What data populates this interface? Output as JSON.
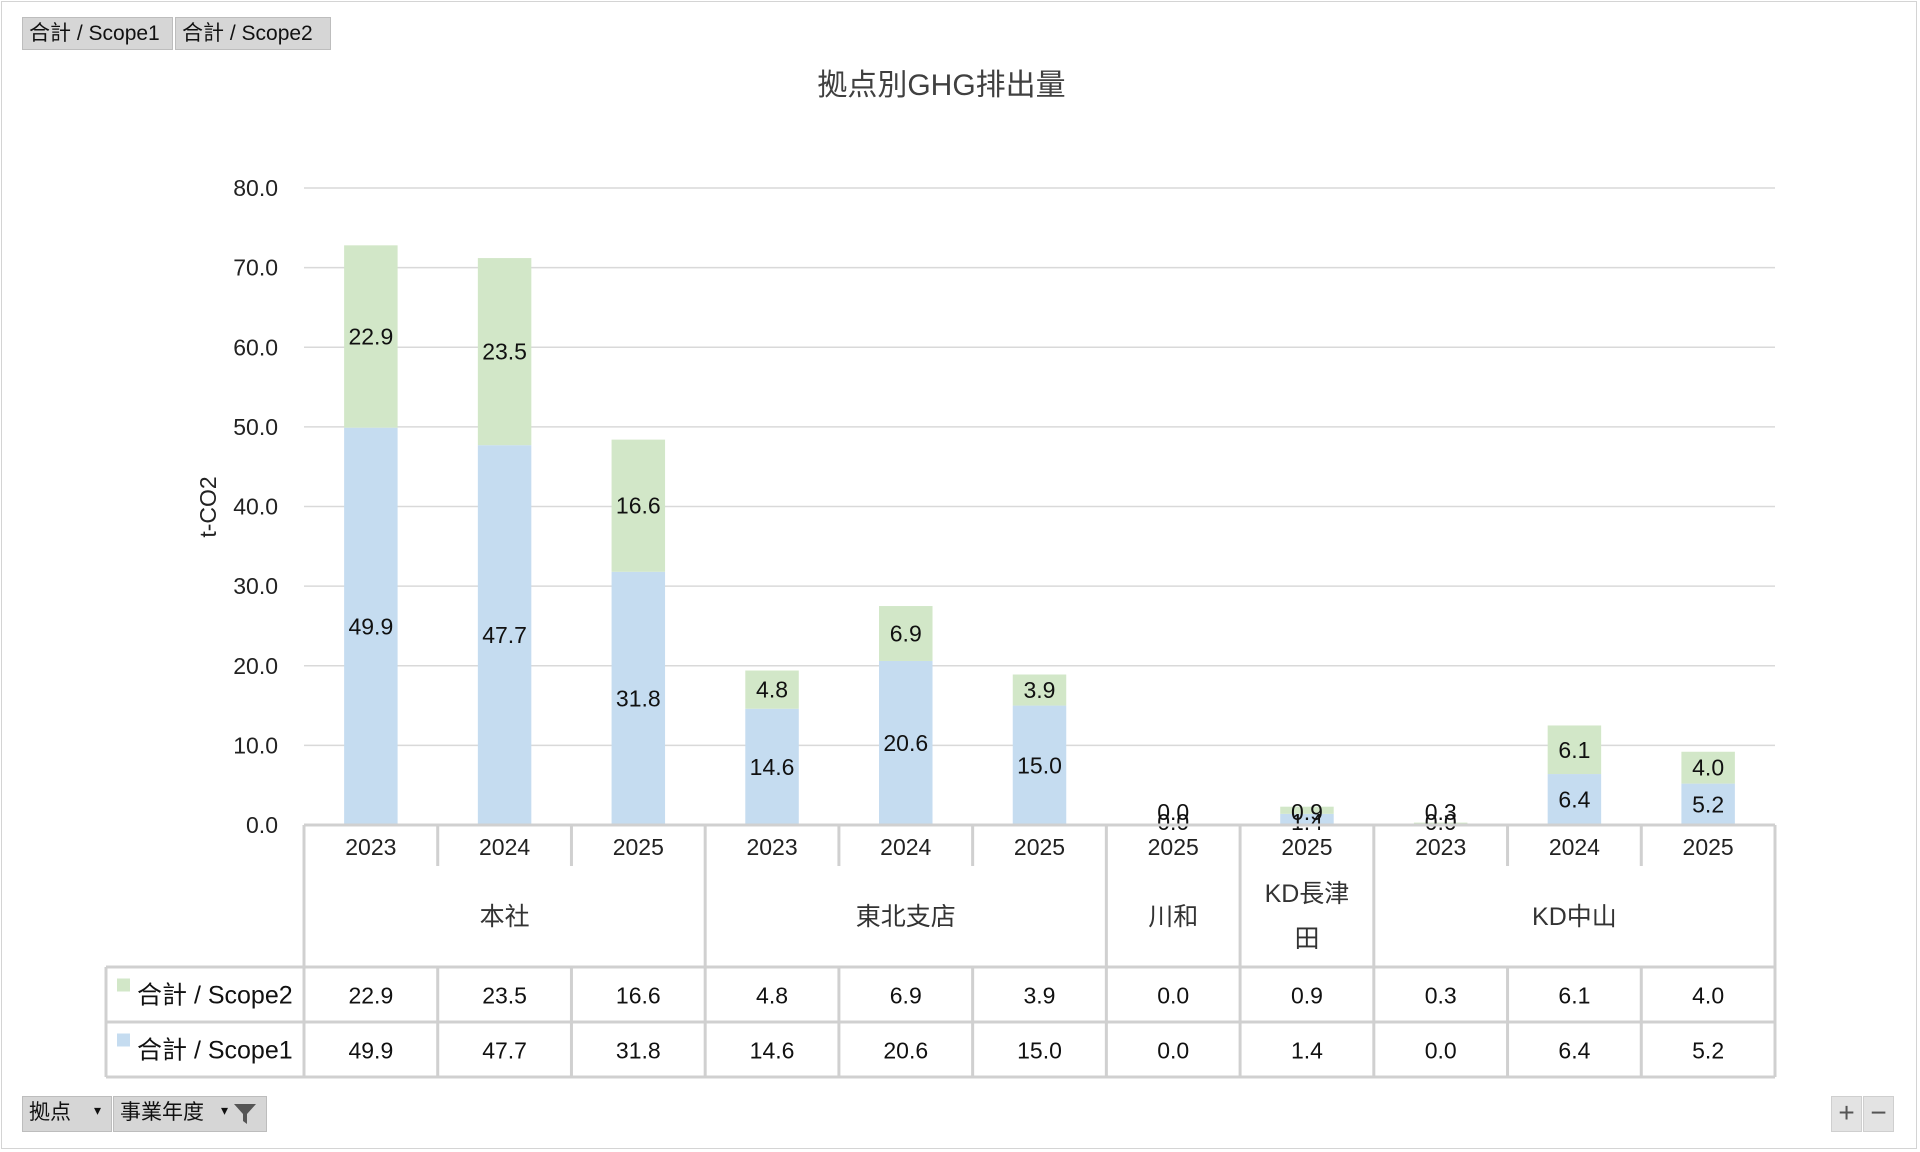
{
  "field_buttons_top": [
    "合計 / Scope1",
    "合計 / Scope2"
  ],
  "field_buttons_bottom": [
    "拠点",
    "事業年度"
  ],
  "colors": {
    "scope1": "#c5dcf0",
    "scope2": "#d2e7c8",
    "grid": "#d9d9d9"
  },
  "icons": {
    "filter": "funnel-icon",
    "dropdown": "dropdown-arrow-icon"
  },
  "zoom": {
    "plus": "+",
    "minus": "−"
  },
  "chart_data": {
    "type": "bar",
    "stacked": true,
    "title": "拠点別GHG排出量",
    "ylabel": "t-CO2",
    "ylim": [
      0,
      80
    ],
    "yticks": [
      "0.0",
      "10.0",
      "20.0",
      "30.0",
      "40.0",
      "50.0",
      "60.0",
      "70.0",
      "80.0"
    ],
    "grid": true,
    "legend": "data-table",
    "groups": [
      {
        "name": "本社",
        "years": [
          "2023",
          "2024",
          "2025"
        ]
      },
      {
        "name": "東北支店",
        "years": [
          "2023",
          "2024",
          "2025"
        ]
      },
      {
        "name": "川和",
        "years": [
          "2025"
        ]
      },
      {
        "name": "KD長津田",
        "years": [
          "2025"
        ]
      },
      {
        "name": "KD中山",
        "years": [
          "2023",
          "2024",
          "2025"
        ]
      }
    ],
    "series": [
      {
        "name": "合計 / Scope1",
        "values": [
          49.9,
          47.7,
          31.8,
          14.6,
          20.6,
          15.0,
          0.0,
          1.4,
          0.0,
          6.4,
          5.2
        ],
        "labels": [
          "49.9",
          "47.7",
          "31.8",
          "14.6",
          "20.6",
          "15.0",
          "0.0",
          "1.4",
          "0.0",
          "6.4",
          "5.2"
        ]
      },
      {
        "name": "合計 / Scope2",
        "values": [
          22.9,
          23.5,
          16.6,
          4.8,
          6.9,
          3.9,
          0.0,
          0.9,
          0.3,
          6.1,
          4.0
        ],
        "labels": [
          "22.9",
          "23.5",
          "16.6",
          "4.8",
          "6.9",
          "3.9",
          "0.0",
          "0.9",
          "0.3",
          "6.1",
          "4.0"
        ]
      }
    ]
  }
}
